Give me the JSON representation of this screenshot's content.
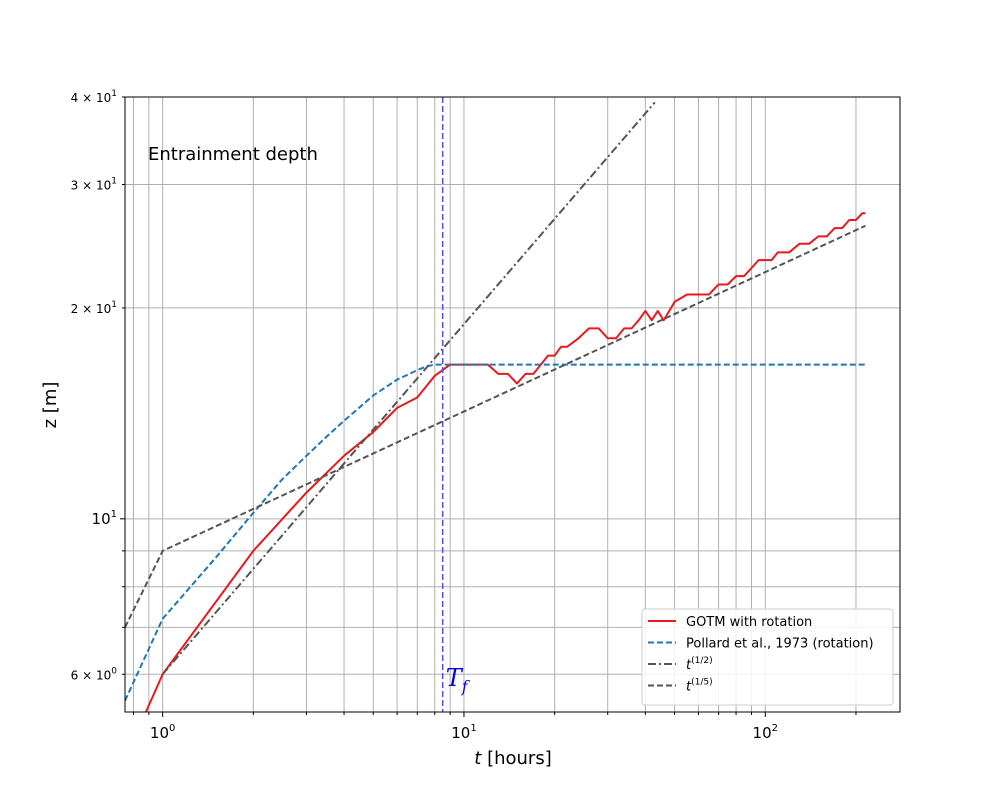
{
  "chart_data": {
    "type": "line",
    "title": "",
    "annotation": "Entrainment depth",
    "xlabel": "t [hours]",
    "xlabel_italic": "t",
    "xlabel_rest": " [hours]",
    "ylabel": "z [m]",
    "xscale": "log",
    "yscale": "log",
    "xlim": [
      0.75,
      280
    ],
    "ylim": [
      5.3,
      40
    ],
    "grid": true,
    "legend_position": "lower-right",
    "x_ticks": [
      {
        "value": 1,
        "base": "10",
        "exp": "0"
      },
      {
        "value": 10,
        "base": "10",
        "exp": "1"
      },
      {
        "value": 100,
        "base": "10",
        "exp": "2"
      }
    ],
    "y_ticks": [
      {
        "value": 6,
        "mantissa": "6",
        "base": "10",
        "exp": "0"
      },
      {
        "value": 10,
        "mantissa": "",
        "base": "10",
        "exp": "1"
      },
      {
        "value": 20,
        "mantissa": "2",
        "base": "10",
        "exp": "1"
      },
      {
        "value": 30,
        "mantissa": "3",
        "base": "10",
        "exp": "1"
      },
      {
        "value": 40,
        "mantissa": "4",
        "base": "10",
        "exp": "1"
      }
    ],
    "vline": {
      "x": 8.5,
      "label_main": "T",
      "label_sub": "f",
      "color": "#5050ee"
    },
    "series": [
      {
        "name": "GOTM with rotation",
        "color": "#e8191c",
        "style": "solid",
        "x": [
          0.88,
          1.0,
          2.0,
          3.0,
          4.0,
          5.0,
          6.0,
          7.0,
          8.0,
          9.0,
          10.0,
          11.0,
          12.0,
          13.0,
          14.0,
          15.0,
          16.0,
          17.0,
          18.0,
          19.0,
          20.0,
          21.0,
          22.0,
          24.0,
          26.0,
          28.0,
          30.0,
          32.0,
          34.0,
          36.0,
          38.0,
          40.0,
          42.0,
          44.0,
          46.0,
          48.0,
          50.0,
          55.0,
          60.0,
          65.0,
          70.0,
          75.0,
          80.0,
          85.0,
          90.0,
          95.0,
          100.0,
          105.0,
          110.0,
          120.0,
          130.0,
          140.0,
          150.0,
          160.0,
          170.0,
          180.0,
          190.0,
          200.0,
          210.0,
          215.0
        ],
        "y": [
          5.3,
          6.0,
          9.0,
          10.9,
          12.3,
          13.3,
          14.4,
          14.9,
          16.0,
          16.6,
          16.6,
          16.6,
          16.6,
          16.1,
          16.1,
          15.6,
          16.1,
          16.1,
          16.6,
          17.1,
          17.1,
          17.6,
          17.6,
          18.1,
          18.7,
          18.7,
          18.1,
          18.1,
          18.7,
          18.7,
          19.2,
          19.8,
          19.2,
          19.8,
          19.2,
          19.8,
          20.4,
          20.9,
          20.9,
          20.9,
          21.6,
          21.6,
          22.2,
          22.2,
          22.8,
          23.4,
          23.4,
          23.4,
          24.0,
          24.0,
          24.7,
          24.7,
          25.3,
          25.3,
          26.0,
          26.0,
          26.7,
          26.7,
          27.3,
          27.3
        ]
      },
      {
        "name": "Pollard et al., 1973 (rotation)",
        "color": "#1f77b4",
        "style": "dashed",
        "x": [
          0.75,
          1.0,
          1.5,
          2.0,
          2.5,
          3.0,
          3.5,
          4.0,
          5.0,
          6.0,
          7.0,
          7.5,
          8.0,
          8.5,
          9.0,
          10.0,
          20.0,
          50.0,
          100.0,
          215.0
        ],
        "y": [
          5.5,
          7.2,
          8.8,
          10.2,
          11.4,
          12.3,
          13.1,
          13.8,
          15.0,
          15.8,
          16.3,
          16.5,
          16.6,
          16.6,
          16.6,
          16.6,
          16.6,
          16.6,
          16.6,
          16.6
        ]
      },
      {
        "name": "t^(1/2)",
        "label_base": "t",
        "label_exp": "(1/2)",
        "color": "#555555",
        "style": "dashdot",
        "x": [
          1.0,
          43.0
        ],
        "y": [
          6.0,
          39.3
        ]
      },
      {
        "name": "t^(1/5)",
        "label_base": "t",
        "label_exp": "(1/5)",
        "color": "#555555",
        "style": "dashed",
        "x": [
          0.75,
          1.0,
          215.0
        ],
        "y": [
          7.0,
          9.0,
          26.2
        ]
      }
    ]
  }
}
